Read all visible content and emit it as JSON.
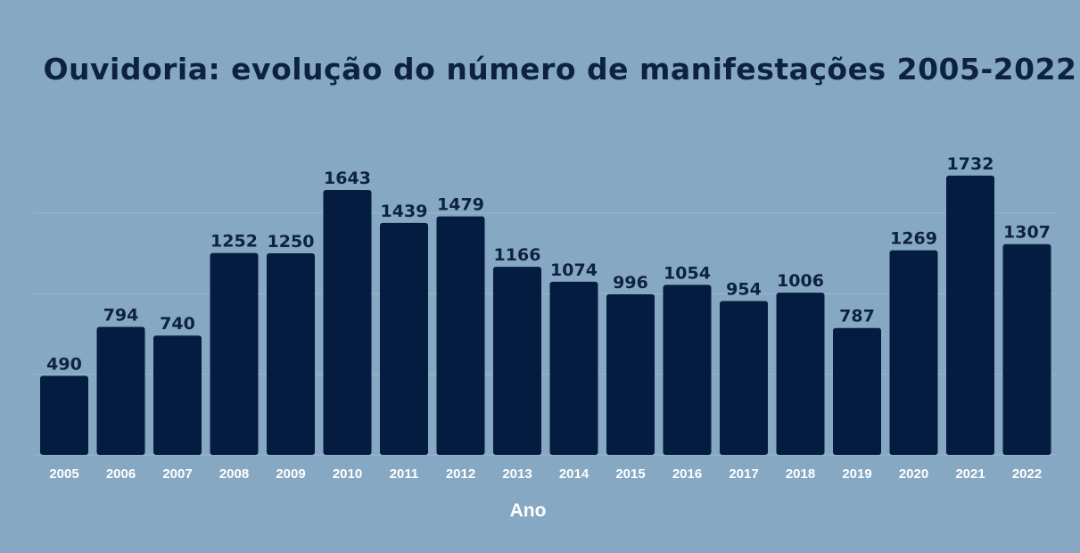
{
  "chart_data": {
    "type": "bar",
    "title": "Ouvidoria: evolução do número de manifestações 2005-2022",
    "xlabel": "Ano",
    "ylabel": "",
    "categories": [
      "2005",
      "2006",
      "2007",
      "2008",
      "2009",
      "2010",
      "2011",
      "2012",
      "2013",
      "2014",
      "2015",
      "2016",
      "2017",
      "2018",
      "2019",
      "2020",
      "2021",
      "2022"
    ],
    "values": [
      490,
      794,
      740,
      1252,
      1250,
      1643,
      1439,
      1479,
      1166,
      1074,
      996,
      1054,
      954,
      1006,
      787,
      1269,
      1732,
      1307
    ],
    "ylim": [
      0,
      2000
    ],
    "grid": true,
    "legend": "none",
    "colors": {
      "background": "#86a8c3",
      "bar": "#041c3f",
      "value_label": "#0d2240",
      "tick_label": "#ffffff",
      "title": "#0d2240"
    }
  }
}
